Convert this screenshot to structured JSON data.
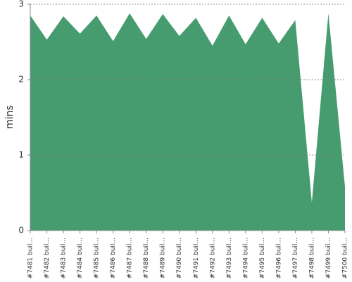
{
  "chart_data": {
    "type": "area",
    "y_label": "mins",
    "categories": [
      "#7481 buil...",
      "#7482 buil...",
      "#7483 buil...",
      "#7484 buil...",
      "#7485 buil...",
      "#7486 buil...",
      "#7487 buil...",
      "#7488 buil...",
      "#7489 buil...",
      "#7490 buil...",
      "#7491 buil...",
      "#7492 buil...",
      "#7493 buil...",
      "#7494 buil...",
      "#7495 buil...",
      "#7496 buil...",
      "#7497 buil...",
      "#7498 buil...",
      "#7499 buil...",
      "#7500 buil..."
    ],
    "values": [
      2.85,
      2.53,
      2.84,
      2.61,
      2.85,
      2.51,
      2.88,
      2.54,
      2.87,
      2.58,
      2.82,
      2.45,
      2.85,
      2.47,
      2.82,
      2.48,
      2.79,
      0.37,
      2.88,
      0.58
    ],
    "color": "#469c6e",
    "ylim": [
      0,
      3
    ],
    "yticks": [
      0,
      1,
      2,
      3
    ],
    "grid": true
  }
}
